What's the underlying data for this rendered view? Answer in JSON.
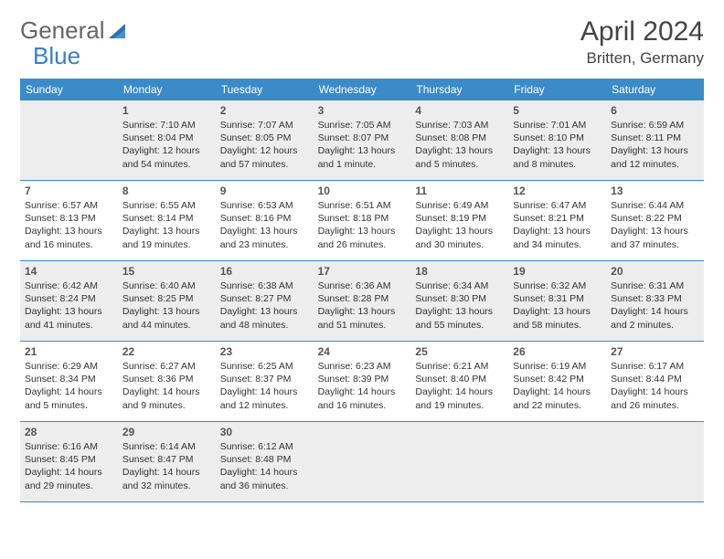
{
  "logo": {
    "text1": "General",
    "text2": "Blue"
  },
  "title": "April 2024",
  "location": "Britten, Germany",
  "colors": {
    "header_bg": "#3b8bc9",
    "header_text": "#ffffff",
    "border": "#3b8bc9",
    "shaded_bg": "#ededed",
    "text": "#333333",
    "logo_gray": "#666666",
    "logo_blue": "#3b7fc4"
  },
  "days_of_week": [
    "Sunday",
    "Monday",
    "Tuesday",
    "Wednesday",
    "Thursday",
    "Friday",
    "Saturday"
  ],
  "leading_blanks": 1,
  "cells": [
    {
      "n": "1",
      "sr": "Sunrise: 7:10 AM",
      "ss": "Sunset: 8:04 PM",
      "d1": "Daylight: 12 hours",
      "d2": "and 54 minutes."
    },
    {
      "n": "2",
      "sr": "Sunrise: 7:07 AM",
      "ss": "Sunset: 8:05 PM",
      "d1": "Daylight: 12 hours",
      "d2": "and 57 minutes."
    },
    {
      "n": "3",
      "sr": "Sunrise: 7:05 AM",
      "ss": "Sunset: 8:07 PM",
      "d1": "Daylight: 13 hours",
      "d2": "and 1 minute."
    },
    {
      "n": "4",
      "sr": "Sunrise: 7:03 AM",
      "ss": "Sunset: 8:08 PM",
      "d1": "Daylight: 13 hours",
      "d2": "and 5 minutes."
    },
    {
      "n": "5",
      "sr": "Sunrise: 7:01 AM",
      "ss": "Sunset: 8:10 PM",
      "d1": "Daylight: 13 hours",
      "d2": "and 8 minutes."
    },
    {
      "n": "6",
      "sr": "Sunrise: 6:59 AM",
      "ss": "Sunset: 8:11 PM",
      "d1": "Daylight: 13 hours",
      "d2": "and 12 minutes."
    },
    {
      "n": "7",
      "sr": "Sunrise: 6:57 AM",
      "ss": "Sunset: 8:13 PM",
      "d1": "Daylight: 13 hours",
      "d2": "and 16 minutes."
    },
    {
      "n": "8",
      "sr": "Sunrise: 6:55 AM",
      "ss": "Sunset: 8:14 PM",
      "d1": "Daylight: 13 hours",
      "d2": "and 19 minutes."
    },
    {
      "n": "9",
      "sr": "Sunrise: 6:53 AM",
      "ss": "Sunset: 8:16 PM",
      "d1": "Daylight: 13 hours",
      "d2": "and 23 minutes."
    },
    {
      "n": "10",
      "sr": "Sunrise: 6:51 AM",
      "ss": "Sunset: 8:18 PM",
      "d1": "Daylight: 13 hours",
      "d2": "and 26 minutes."
    },
    {
      "n": "11",
      "sr": "Sunrise: 6:49 AM",
      "ss": "Sunset: 8:19 PM",
      "d1": "Daylight: 13 hours",
      "d2": "and 30 minutes."
    },
    {
      "n": "12",
      "sr": "Sunrise: 6:47 AM",
      "ss": "Sunset: 8:21 PM",
      "d1": "Daylight: 13 hours",
      "d2": "and 34 minutes."
    },
    {
      "n": "13",
      "sr": "Sunrise: 6:44 AM",
      "ss": "Sunset: 8:22 PM",
      "d1": "Daylight: 13 hours",
      "d2": "and 37 minutes."
    },
    {
      "n": "14",
      "sr": "Sunrise: 6:42 AM",
      "ss": "Sunset: 8:24 PM",
      "d1": "Daylight: 13 hours",
      "d2": "and 41 minutes."
    },
    {
      "n": "15",
      "sr": "Sunrise: 6:40 AM",
      "ss": "Sunset: 8:25 PM",
      "d1": "Daylight: 13 hours",
      "d2": "and 44 minutes."
    },
    {
      "n": "16",
      "sr": "Sunrise: 6:38 AM",
      "ss": "Sunset: 8:27 PM",
      "d1": "Daylight: 13 hours",
      "d2": "and 48 minutes."
    },
    {
      "n": "17",
      "sr": "Sunrise: 6:36 AM",
      "ss": "Sunset: 8:28 PM",
      "d1": "Daylight: 13 hours",
      "d2": "and 51 minutes."
    },
    {
      "n": "18",
      "sr": "Sunrise: 6:34 AM",
      "ss": "Sunset: 8:30 PM",
      "d1": "Daylight: 13 hours",
      "d2": "and 55 minutes."
    },
    {
      "n": "19",
      "sr": "Sunrise: 6:32 AM",
      "ss": "Sunset: 8:31 PM",
      "d1": "Daylight: 13 hours",
      "d2": "and 58 minutes."
    },
    {
      "n": "20",
      "sr": "Sunrise: 6:31 AM",
      "ss": "Sunset: 8:33 PM",
      "d1": "Daylight: 14 hours",
      "d2": "and 2 minutes."
    },
    {
      "n": "21",
      "sr": "Sunrise: 6:29 AM",
      "ss": "Sunset: 8:34 PM",
      "d1": "Daylight: 14 hours",
      "d2": "and 5 minutes."
    },
    {
      "n": "22",
      "sr": "Sunrise: 6:27 AM",
      "ss": "Sunset: 8:36 PM",
      "d1": "Daylight: 14 hours",
      "d2": "and 9 minutes."
    },
    {
      "n": "23",
      "sr": "Sunrise: 6:25 AM",
      "ss": "Sunset: 8:37 PM",
      "d1": "Daylight: 14 hours",
      "d2": "and 12 minutes."
    },
    {
      "n": "24",
      "sr": "Sunrise: 6:23 AM",
      "ss": "Sunset: 8:39 PM",
      "d1": "Daylight: 14 hours",
      "d2": "and 16 minutes."
    },
    {
      "n": "25",
      "sr": "Sunrise: 6:21 AM",
      "ss": "Sunset: 8:40 PM",
      "d1": "Daylight: 14 hours",
      "d2": "and 19 minutes."
    },
    {
      "n": "26",
      "sr": "Sunrise: 6:19 AM",
      "ss": "Sunset: 8:42 PM",
      "d1": "Daylight: 14 hours",
      "d2": "and 22 minutes."
    },
    {
      "n": "27",
      "sr": "Sunrise: 6:17 AM",
      "ss": "Sunset: 8:44 PM",
      "d1": "Daylight: 14 hours",
      "d2": "and 26 minutes."
    },
    {
      "n": "28",
      "sr": "Sunrise: 6:16 AM",
      "ss": "Sunset: 8:45 PM",
      "d1": "Daylight: 14 hours",
      "d2": "and 29 minutes."
    },
    {
      "n": "29",
      "sr": "Sunrise: 6:14 AM",
      "ss": "Sunset: 8:47 PM",
      "d1": "Daylight: 14 hours",
      "d2": "and 32 minutes."
    },
    {
      "n": "30",
      "sr": "Sunrise: 6:12 AM",
      "ss": "Sunset: 8:48 PM",
      "d1": "Daylight: 14 hours",
      "d2": "and 36 minutes."
    }
  ],
  "trailing_blanks": 4
}
